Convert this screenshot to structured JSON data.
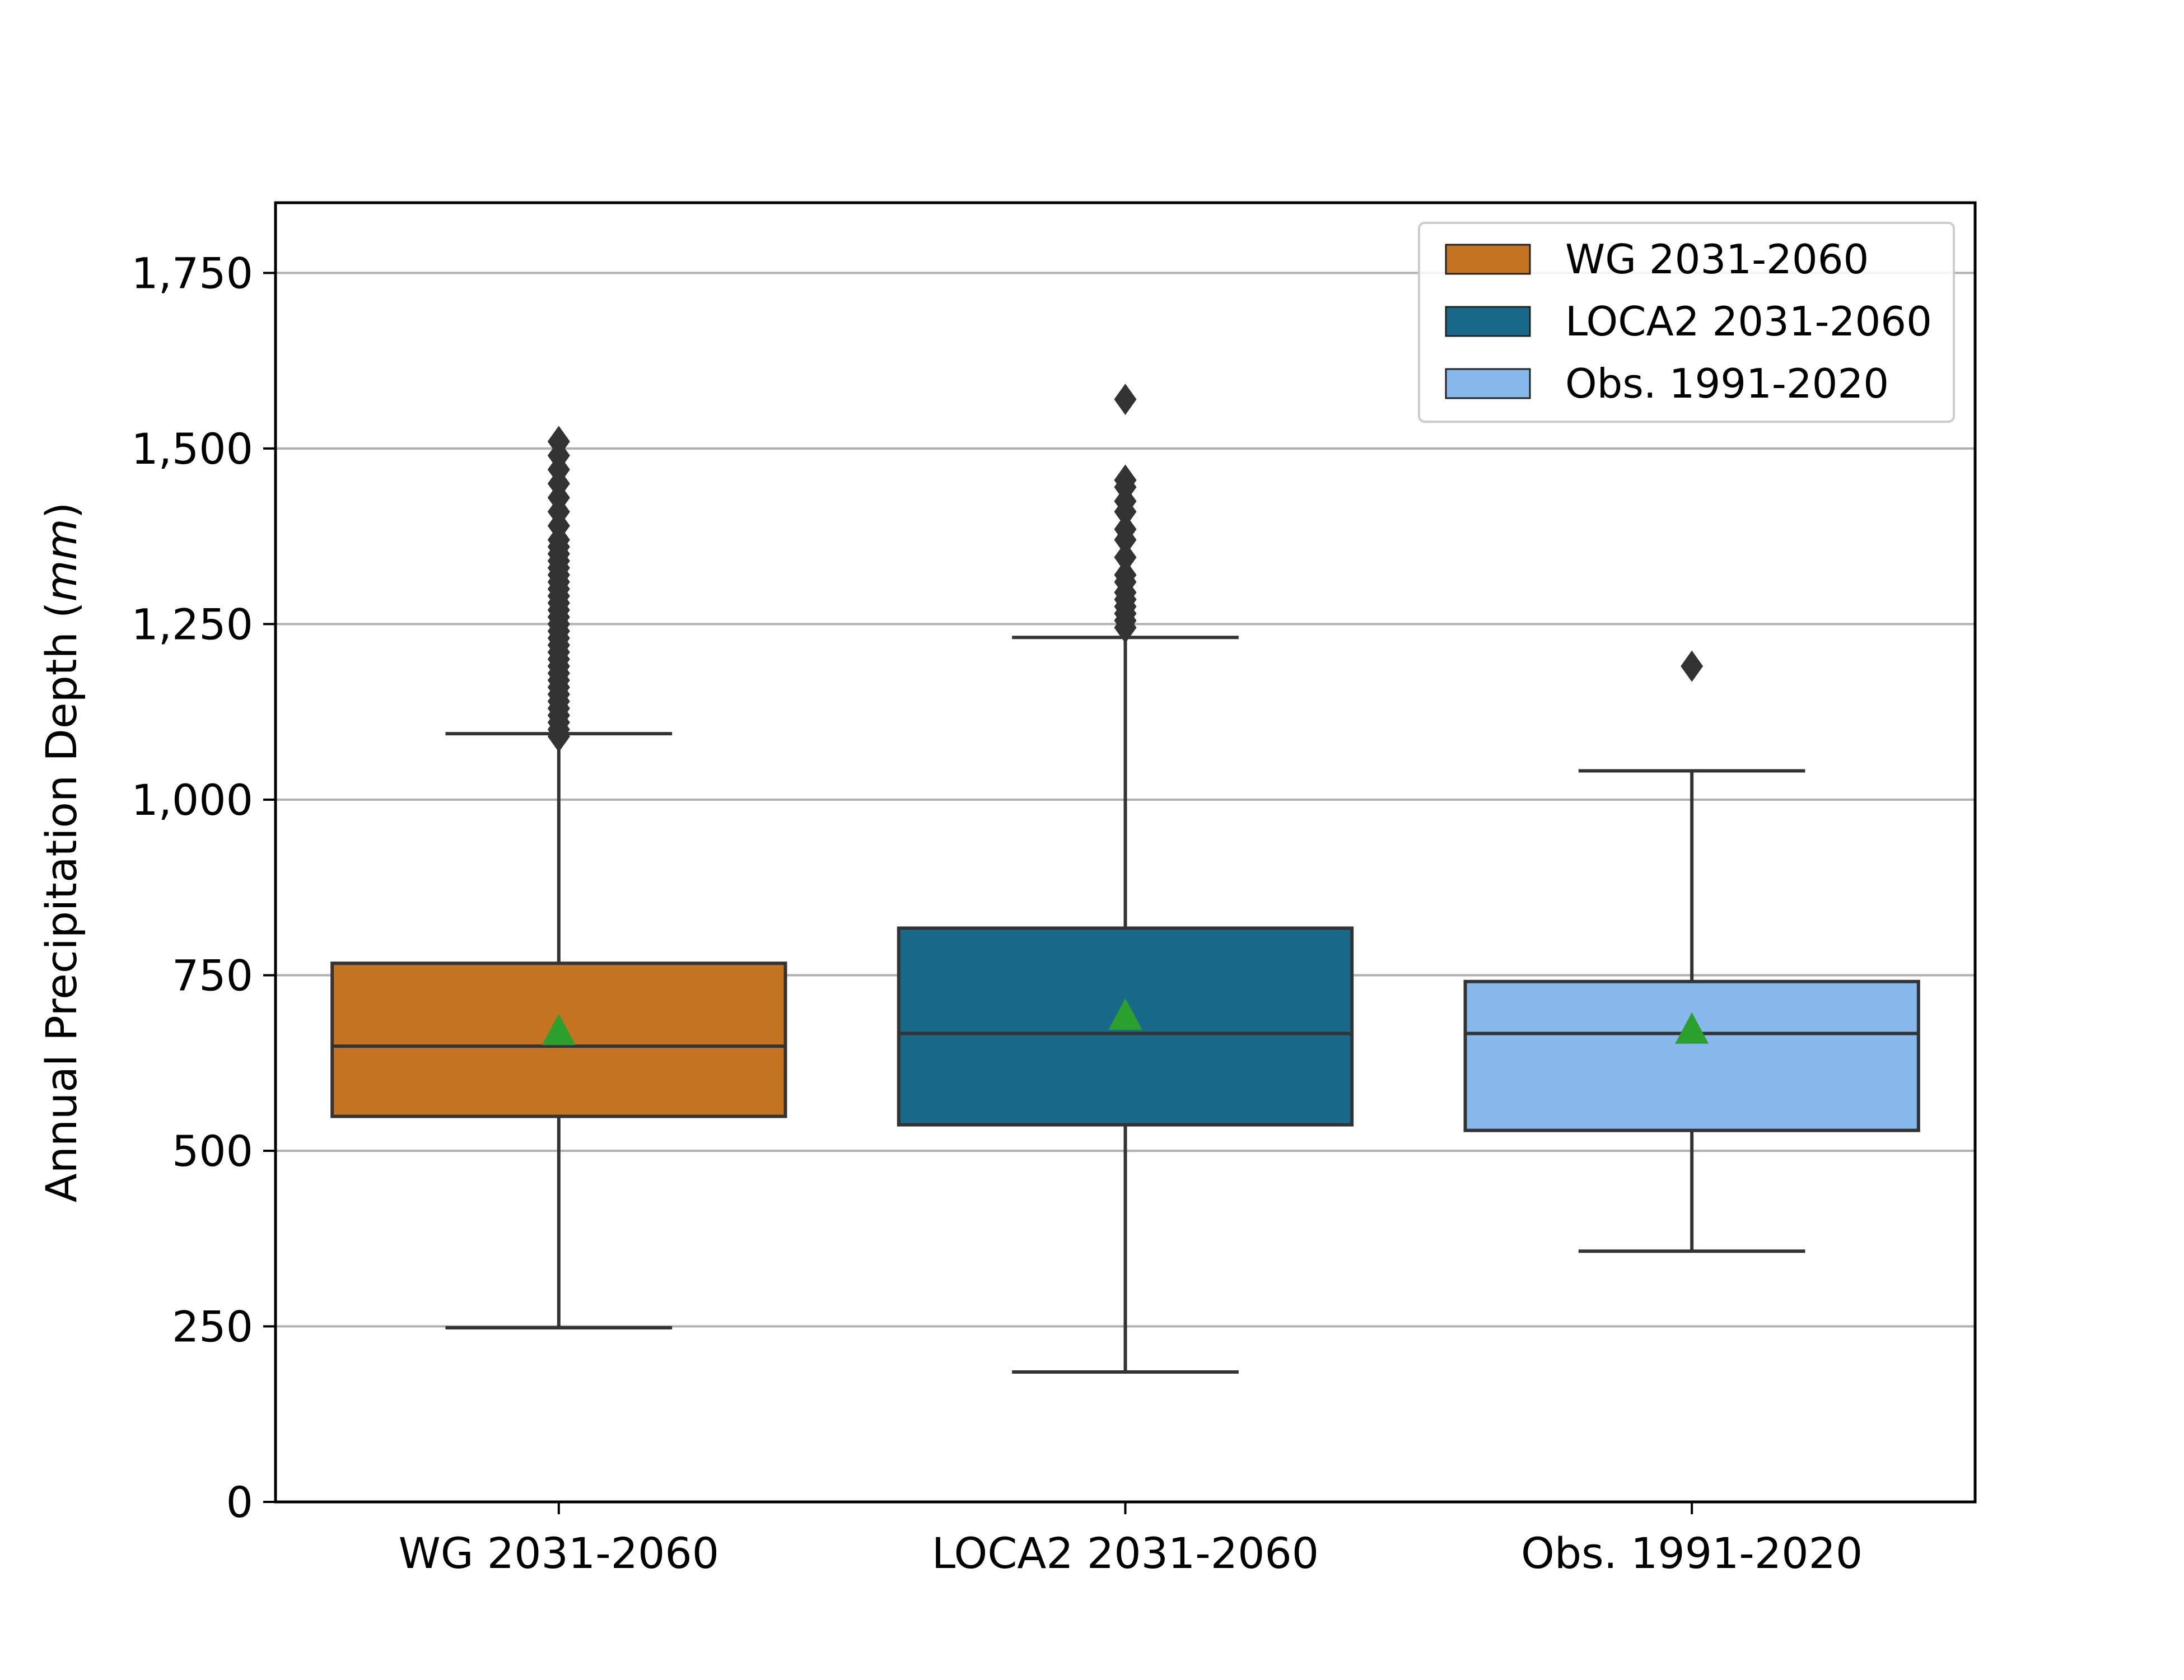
{
  "chart_data": {
    "type": "box",
    "ylabel_main": "Annual Precipitation Depth ",
    "ylabel_unit": "mm",
    "ylim": [
      0,
      1850
    ],
    "yticks": [
      0,
      250,
      500,
      750,
      1000,
      1250,
      1500,
      1750
    ],
    "ytick_labels": [
      "0",
      "250",
      "500",
      "750",
      "1,000",
      "1,250",
      "1,500",
      "1,750"
    ],
    "grid": "y",
    "legend_position": "top-right",
    "categories": [
      "WG 2031-2060",
      "LOCA2 2031-2060",
      "Obs. 1991-2020"
    ],
    "series": [
      {
        "name": "WG 2031-2060",
        "color": "#c47420",
        "whisker_low": 248,
        "q1": 549,
        "median": 649,
        "q3": 767,
        "whisker_high": 1094,
        "mean": 668,
        "outliers": [
          1090,
          1100,
          1110,
          1120,
          1130,
          1140,
          1150,
          1160,
          1170,
          1180,
          1190,
          1200,
          1210,
          1220,
          1230,
          1240,
          1250,
          1260,
          1270,
          1280,
          1290,
          1300,
          1310,
          1320,
          1330,
          1340,
          1350,
          1360,
          1370,
          1390,
          1410,
          1430,
          1450,
          1470,
          1490,
          1510
        ]
      },
      {
        "name": "LOCA2 2031-2060",
        "color": "#19698b",
        "whisker_low": 185,
        "q1": 537,
        "median": 667,
        "q3": 817,
        "whisker_high": 1231,
        "mean": 690,
        "outliers": [
          1245,
          1255,
          1265,
          1275,
          1285,
          1295,
          1310,
          1320,
          1345,
          1370,
          1385,
          1410,
          1425,
          1445,
          1455,
          1570
        ]
      },
      {
        "name": "Obs. 1991-2020",
        "color": "#87b9ec",
        "whisker_low": 357,
        "q1": 529,
        "median": 667,
        "q3": 741,
        "whisker_high": 1041,
        "mean": 670,
        "outliers": [
          1190
        ]
      }
    ]
  }
}
